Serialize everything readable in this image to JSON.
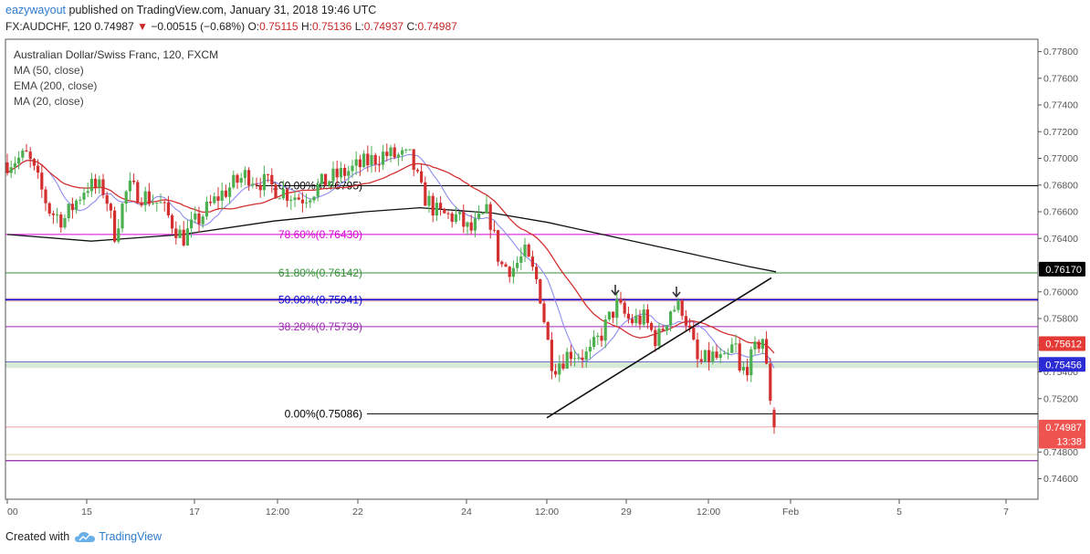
{
  "header": {
    "author": "eazywayout",
    "published_text": "published on TradingView.com, January 31, 2018 19:46 UTC",
    "symbol": "FX:AUDCHF, 120",
    "last": "0.74987",
    "change": "−0.00515 (−0.68%)",
    "o_label": "O:",
    "o_value": "0.75115",
    "h_label": "H:",
    "h_value": "0.75136",
    "l_label": "L:",
    "l_value": "0.74937",
    "c_label": "C:",
    "c_value": "0.74987"
  },
  "legend": {
    "title": "Australian Dollar/Swiss Franc, 120, FXCM",
    "ma50": "MA (50, close)",
    "ema200": "EMA (200, close)",
    "ma20": "MA (20, close)"
  },
  "footer": {
    "created_with": "Created with",
    "brand": "TradingView"
  },
  "chart_data": {
    "type": "candlestick",
    "title": "Australian Dollar/Swiss Franc, 120, FXCM",
    "ylim": [
      0.745,
      0.779
    ],
    "y_ticks": [
      "0.77800",
      "0.77600",
      "0.77400",
      "0.77200",
      "0.77000",
      "0.76800",
      "0.76600",
      "0.76400",
      "0.76200",
      "0.76000",
      "0.75800",
      "0.75600",
      "0.75400",
      "0.75200",
      "0.74800",
      "0.74600"
    ],
    "x_ticks": [
      "00",
      "15",
      "17",
      "12:00",
      "22",
      "24",
      "12:00",
      "29",
      "12:00",
      "Feb",
      "5",
      "7"
    ],
    "fib_levels": [
      {
        "label": "100.00%(0.76795)",
        "value": 0.76795,
        "color": "#000000"
      },
      {
        "label": "78.60%(0.76430)",
        "value": 0.7643,
        "color": "#d500d5"
      },
      {
        "label": "61.80%(0.76142)",
        "value": 0.76142,
        "color": "#388e3c"
      },
      {
        "label": "50.00%(0.75941)",
        "value": 0.75941,
        "color": "#0000d0"
      },
      {
        "label": "38.20%(0.75739)",
        "value": 0.75739,
        "color": "#9c27b0"
      },
      {
        "label": "0.00%(0.75086)",
        "value": 0.75086,
        "color": "#000000"
      }
    ],
    "price_labels": [
      {
        "text": "0.76170",
        "value": 0.7617,
        "bg": "#000000",
        "fg": "#ffffff"
      },
      {
        "text": "0.75612",
        "value": 0.75612,
        "bg": "#e53935",
        "fg": "#ffffff"
      },
      {
        "text": "0.75456",
        "value": 0.75456,
        "bg": "#2b2bd6",
        "fg": "#ffffff"
      },
      {
        "text": "0.74987",
        "value": 0.74987,
        "bg": "#ef5350",
        "fg": "#ffffff"
      },
      {
        "text": "13:38",
        "value": 0.7488,
        "bg": "#ef5350",
        "fg": "#ffffff"
      }
    ],
    "series": [
      {
        "name": "MA (50, close)",
        "color": "#d32f2f"
      },
      {
        "name": "EMA (200, close)",
        "color": "#111111"
      },
      {
        "name": "MA (20, close)",
        "color": "#8c8cf0"
      }
    ],
    "grid": false,
    "colors": {
      "up": "#4caf50",
      "down": "#d32f2f",
      "fib_zone": "#f3b7b7",
      "support_zone": "#cfe6cf"
    }
  }
}
